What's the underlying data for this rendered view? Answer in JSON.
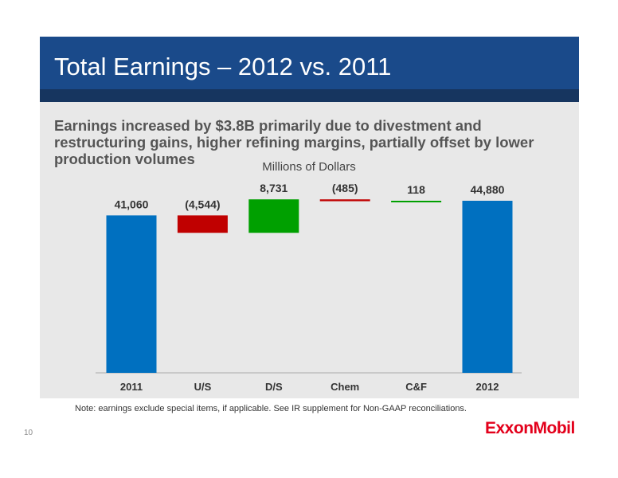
{
  "slide": {
    "title": "Total Earnings – 2012 vs. 2011",
    "subtitle": "Earnings increased by $3.8B primarily due to divestment and restructuring gains, higher refining margins, partially offset by lower production volumes",
    "note": "Note: earnings exclude special items, if applicable. See IR supplement for Non-GAAP reconciliations.",
    "page_number": "10",
    "logo_text": "ExxonMobil"
  },
  "colors": {
    "header": "#1a4a8a",
    "total": "#0070c0",
    "decrease": "#c00000",
    "increase": "#00a000",
    "background": "#e8e8e8"
  },
  "chart_data": {
    "type": "bar",
    "subtype": "waterfall",
    "units_label": "Millions of Dollars",
    "categories": [
      "2011",
      "U/S",
      "D/S",
      "Chem",
      "C&F",
      "2012"
    ],
    "values": [
      41060,
      -4544,
      8731,
      -485,
      118,
      44880
    ],
    "labels": [
      "41,060",
      "(4,544)",
      "8,731",
      "(485)",
      "118",
      "44,880"
    ],
    "kinds": [
      "total",
      "delta",
      "delta",
      "delta",
      "delta",
      "total"
    ],
    "grid": false,
    "legend": "none"
  }
}
